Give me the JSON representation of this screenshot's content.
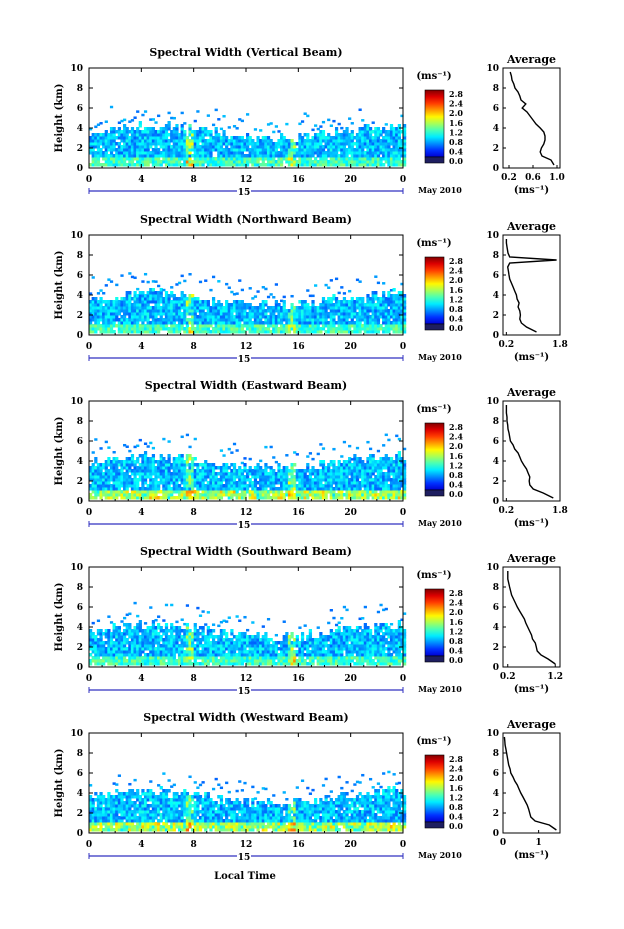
{
  "figure": {
    "time_axis_label": "Local Time",
    "height_axis_label": "Height (km)",
    "day_label": "15",
    "month_label": "May 2010",
    "colorbar_unit": "(ms⁻¹)",
    "colorbar_ticks": [
      "2.8",
      "2.4",
      "2.0",
      "1.6",
      "1.2",
      "0.8",
      "0.4",
      "0.0"
    ],
    "avg_title": "Average",
    "avg_unit": "(ms⁻¹)",
    "x_ticks": [
      "0",
      "4",
      "8",
      "12",
      "16",
      "20",
      "0"
    ],
    "y_ticks": [
      "0",
      "2",
      "4",
      "6",
      "8",
      "10"
    ]
  },
  "chart_data": [
    {
      "type": "heatmap",
      "title": "Spectral Width (Vertical Beam)",
      "xlabel": "",
      "ylabel": "Height (km)",
      "xlim": [
        0,
        24
      ],
      "ylim": [
        0,
        10
      ],
      "clim": [
        0,
        3.0
      ],
      "avg_profile": {
        "xlim": [
          0.1,
          1.05
        ],
        "ticks": [
          "0.2",
          "0.6",
          "1.0"
        ],
        "tick_values": [
          0.2,
          0.6,
          1.0
        ],
        "height": [
          0.3,
          0.8,
          1.2,
          1.6,
          2.0,
          2.4,
          2.8,
          3.2,
          3.6,
          4.0,
          4.4,
          4.8,
          5.2,
          5.6,
          6.0,
          6.4,
          6.8,
          7.2,
          7.6,
          8.0,
          8.4,
          8.8,
          9.2,
          9.6
        ],
        "value": [
          0.95,
          0.9,
          0.75,
          0.72,
          0.74,
          0.78,
          0.8,
          0.8,
          0.78,
          0.72,
          0.65,
          0.6,
          0.55,
          0.5,
          0.42,
          0.48,
          0.4,
          0.38,
          0.35,
          0.3,
          0.28,
          0.25,
          0.24,
          0.22
        ]
      }
    },
    {
      "type": "heatmap",
      "title": "Spectral Width (Northward Beam)",
      "xlabel": "",
      "ylabel": "Height (km)",
      "xlim": [
        0,
        24
      ],
      "ylim": [
        0,
        10
      ],
      "clim": [
        0,
        3.0
      ],
      "avg_profile": {
        "xlim": [
          0.1,
          1.8
        ],
        "ticks": [
          "0.2",
          "1.8"
        ],
        "tick_values": [
          0.2,
          1.8
        ],
        "height": [
          0.3,
          0.8,
          1.2,
          1.6,
          2.0,
          2.4,
          2.8,
          3.2,
          3.6,
          4.0,
          4.4,
          4.8,
          5.2,
          5.6,
          6.0,
          6.4,
          6.8,
          7.2,
          7.5,
          7.8,
          8.2,
          8.8,
          9.2,
          9.6
        ],
        "value": [
          1.1,
          0.8,
          0.65,
          0.6,
          0.62,
          0.6,
          0.55,
          0.58,
          0.52,
          0.5,
          0.45,
          0.4,
          0.35,
          0.3,
          0.28,
          0.26,
          0.24,
          0.3,
          1.7,
          0.3,
          0.25,
          0.22,
          0.2,
          0.2
        ]
      }
    },
    {
      "type": "heatmap",
      "title": "Spectral Width (Eastward Beam)",
      "xlabel": "",
      "ylabel": "Height (km)",
      "xlim": [
        0,
        24
      ],
      "ylim": [
        0,
        10
      ],
      "clim": [
        0,
        3.0
      ],
      "avg_profile": {
        "xlim": [
          0.1,
          1.8
        ],
        "ticks": [
          "0.2",
          "1.8"
        ],
        "tick_values": [
          0.2,
          1.8
        ],
        "height": [
          0.3,
          0.8,
          1.2,
          1.6,
          2.0,
          2.4,
          2.8,
          3.2,
          3.6,
          4.0,
          4.4,
          4.8,
          5.2,
          5.6,
          6.0,
          6.4,
          6.8,
          7.2,
          7.6,
          8.0,
          8.4,
          8.8,
          9.2,
          9.6
        ],
        "value": [
          1.6,
          1.3,
          1.0,
          0.9,
          0.88,
          0.9,
          0.85,
          0.8,
          0.72,
          0.65,
          0.6,
          0.55,
          0.45,
          0.4,
          0.32,
          0.3,
          0.28,
          0.25,
          0.24,
          0.22,
          0.22,
          0.2,
          0.2,
          0.2
        ]
      }
    },
    {
      "type": "heatmap",
      "title": "Spectral Width (Southward Beam)",
      "xlabel": "",
      "ylabel": "Height (km)",
      "xlim": [
        0,
        24
      ],
      "ylim": [
        0,
        10
      ],
      "clim": [
        0,
        3.0
      ],
      "avg_profile": {
        "xlim": [
          0.1,
          1.3
        ],
        "ticks": [
          "0.2",
          "1.2"
        ],
        "tick_values": [
          0.2,
          1.2
        ],
        "height": [
          0.3,
          0.8,
          1.2,
          1.6,
          2.0,
          2.4,
          2.8,
          3.2,
          3.6,
          4.0,
          4.4,
          4.8,
          5.2,
          5.6,
          6.0,
          6.4,
          6.8,
          7.2,
          7.6,
          8.0,
          8.4,
          8.8,
          9.2,
          9.6
        ],
        "value": [
          1.2,
          1.05,
          0.9,
          0.82,
          0.8,
          0.78,
          0.72,
          0.7,
          0.66,
          0.62,
          0.58,
          0.55,
          0.5,
          0.45,
          0.4,
          0.36,
          0.32,
          0.28,
          0.26,
          0.24,
          0.22,
          0.2,
          0.2,
          0.2
        ]
      }
    },
    {
      "type": "heatmap",
      "title": "Spectral Width (Westward Beam)",
      "xlabel": "",
      "ylabel": "Height (km)",
      "xlim": [
        0,
        24
      ],
      "ylim": [
        0,
        10
      ],
      "clim": [
        0,
        3.0
      ],
      "avg_profile": {
        "xlim": [
          0.0,
          1.6
        ],
        "ticks": [
          "0",
          "1"
        ],
        "tick_values": [
          0,
          1
        ],
        "height": [
          0.3,
          0.8,
          1.2,
          1.6,
          2.0,
          2.4,
          2.8,
          3.2,
          3.6,
          4.0,
          4.4,
          4.8,
          5.2,
          5.6,
          6.0,
          6.4,
          6.8,
          7.2,
          7.6,
          8.0,
          8.4,
          8.8,
          9.2,
          9.6
        ],
        "value": [
          1.5,
          1.3,
          0.9,
          0.78,
          0.75,
          0.72,
          0.68,
          0.62,
          0.56,
          0.5,
          0.45,
          0.4,
          0.33,
          0.28,
          0.22,
          0.2,
          0.16,
          0.14,
          0.12,
          0.1,
          0.08,
          0.06,
          0.05,
          0.04
        ]
      }
    }
  ]
}
